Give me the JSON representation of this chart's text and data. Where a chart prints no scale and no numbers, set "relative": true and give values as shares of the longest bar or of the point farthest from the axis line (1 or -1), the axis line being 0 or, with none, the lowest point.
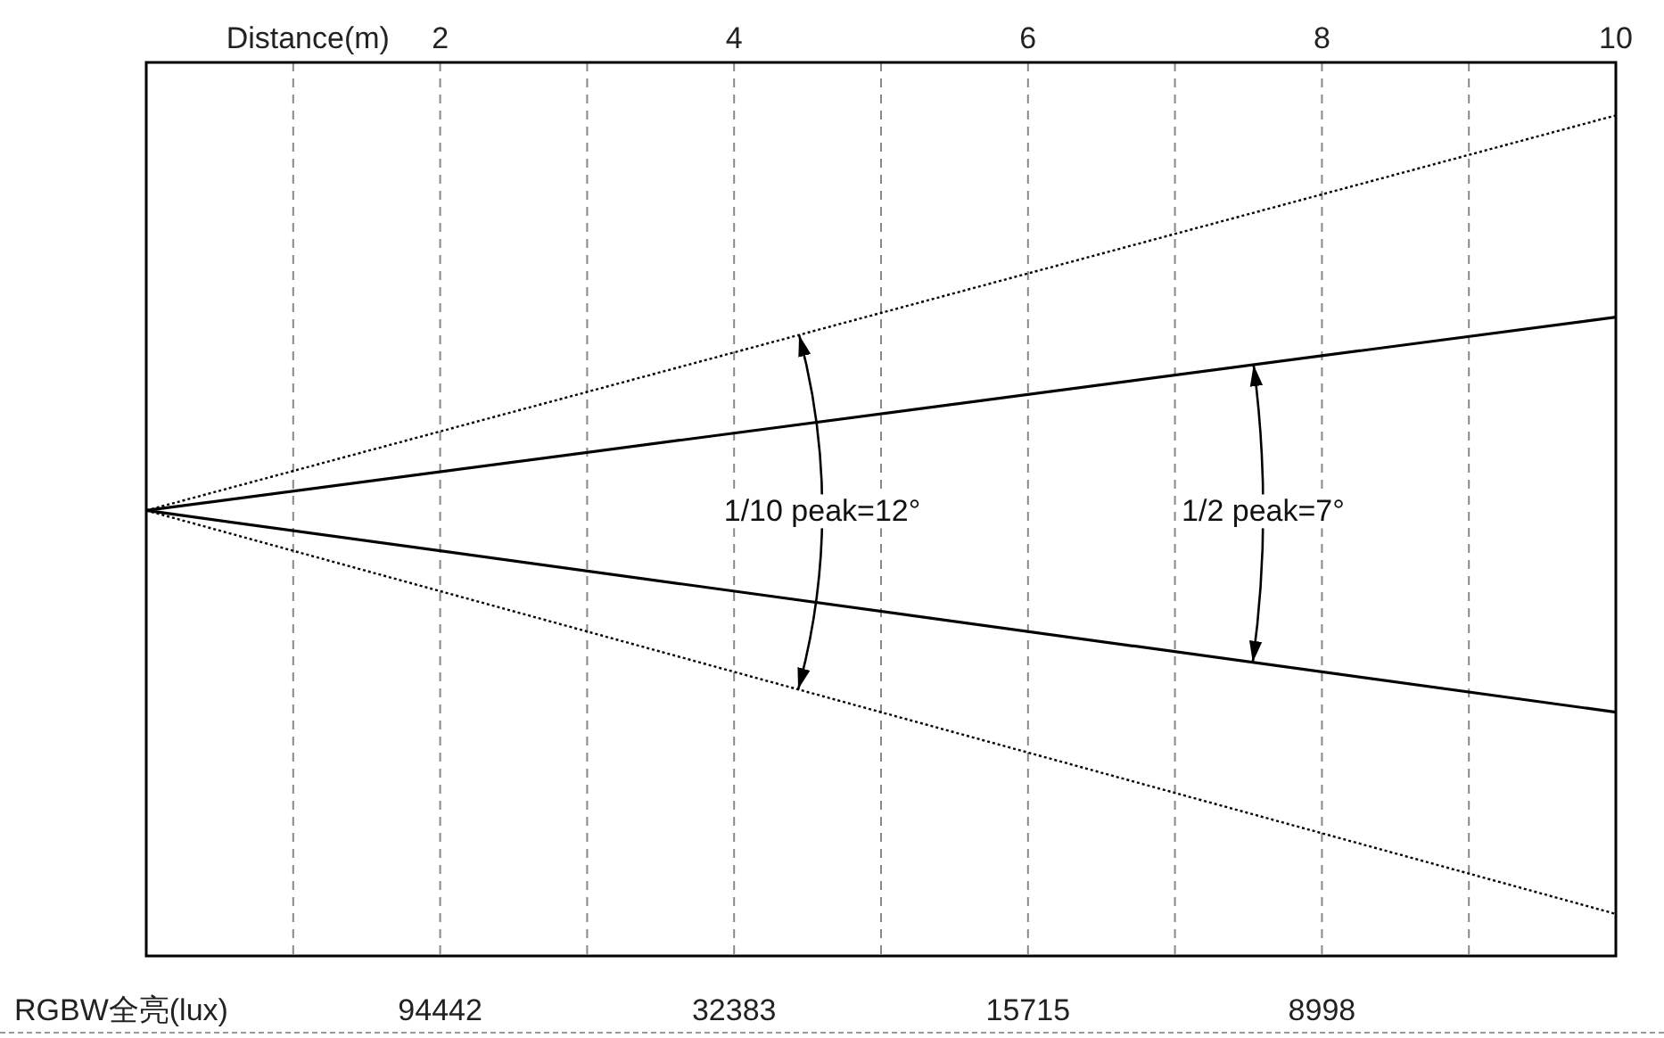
{
  "chart_data": {
    "type": "line",
    "relative": true,
    "xlabel": "Distance(m)",
    "xlim": [
      0,
      10
    ],
    "xticks": [
      {
        "value": 1,
        "label": null
      },
      2,
      {
        "value": 3,
        "label": null
      },
      4,
      {
        "value": 5,
        "label": null
      },
      6,
      {
        "value": 7,
        "label": null
      },
      8,
      {
        "value": 9,
        "label": null
      },
      10
    ],
    "grid": "x",
    "x": [
      0,
      10
    ],
    "series": [
      {
        "color": "#000000",
        "line_style": "dotted",
        "values": [
          0.53,
          1
        ]
      },
      {
        "color": "#000000",
        "line_style": "solid",
        "values": [
          0.53,
          0.76
        ]
      },
      {
        "color": "#000000",
        "line_style": "solid",
        "values": [
          0.53,
          0.29
        ]
      },
      {
        "color": "#000000",
        "line_style": "dotted",
        "values": [
          0.53,
          0.05
        ]
      }
    ],
    "annotations": [
      "1/10 peak=12°",
      "1/2 peak=7°",
      "RGBW全亮(lux)",
      "94442",
      "32383",
      "15715",
      "8998"
    ]
  }
}
